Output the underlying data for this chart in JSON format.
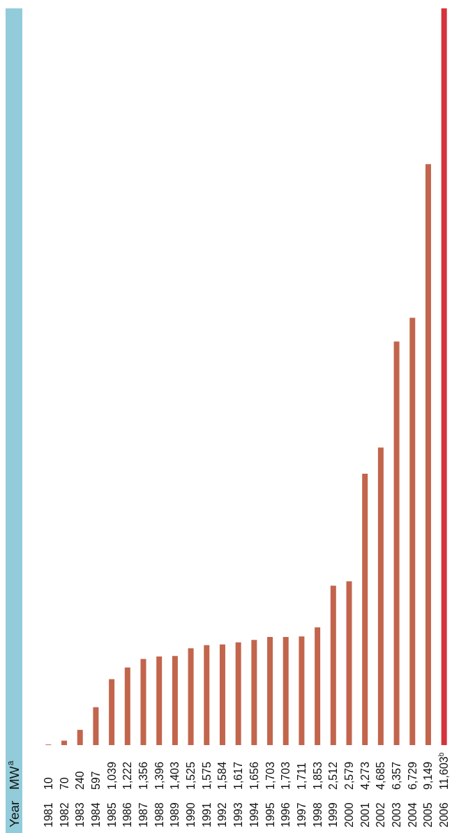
{
  "chart_data": {
    "type": "bar",
    "annotations": [
      "Year"
    ],
    "ylabel": "MW$^{a}$",
    "categories": [
      "1981",
      "1982",
      "1983",
      "1984",
      "1985",
      "1986",
      "1987",
      "1988",
      "1989",
      "1990",
      "1991",
      "1992",
      "1993",
      "1994",
      "1995",
      "1996",
      "1997",
      "1998",
      "1999",
      "2000",
      "2001",
      "2002",
      "2003",
      "2004",
      "2005",
      "2006"
    ],
    "values": [
      10,
      70,
      240,
      597,
      1039,
      1222,
      1356,
      1396,
      1403,
      1525,
      1575,
      1584,
      1617,
      1656,
      1703,
      1703,
      1711,
      1853,
      2512,
      2579,
      4273,
      4685,
      6357,
      6729,
      9149,
      11603
    ],
    "value_labels": [
      "10",
      "70",
      "240",
      "597",
      "1,039",
      "1,222",
      "1,356",
      "1,396",
      "1,403",
      "1,525",
      "1,575",
      "1,584",
      "1,617",
      "1,656",
      "1,703",
      "1,703",
      "1,711",
      "1,853",
      "2,512",
      "2,579",
      "4,273",
      "4,685",
      "6,357",
      "6,729",
      "9,149",
      "11,603$^{b}$"
    ],
    "colors": [
      "#c2654c",
      "#c2654c",
      "#c2654c",
      "#c2654c",
      "#c2654c",
      "#c2654c",
      "#c2654c",
      "#c2654c",
      "#c2654c",
      "#c2654c",
      "#c2654c",
      "#c2654c",
      "#c2654c",
      "#c2654c",
      "#c2654c",
      "#c2654c",
      "#c2654c",
      "#c2654c",
      "#c2654c",
      "#c2654c",
      "#c2654c",
      "#c2654c",
      "#c2654c",
      "#c2654c",
      "#c2654c",
      "#d3333b"
    ]
  }
}
